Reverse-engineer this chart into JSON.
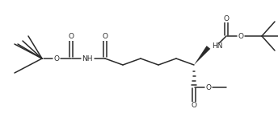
{
  "bg_color": "#ffffff",
  "line_color": "#2a2a2a",
  "line_width": 1.1,
  "font_size": 6.5,
  "fig_width": 3.44,
  "fig_height": 1.41,
  "dpi": 100,
  "xlim": [
    0,
    344
  ],
  "ylim": [
    0,
    141
  ]
}
